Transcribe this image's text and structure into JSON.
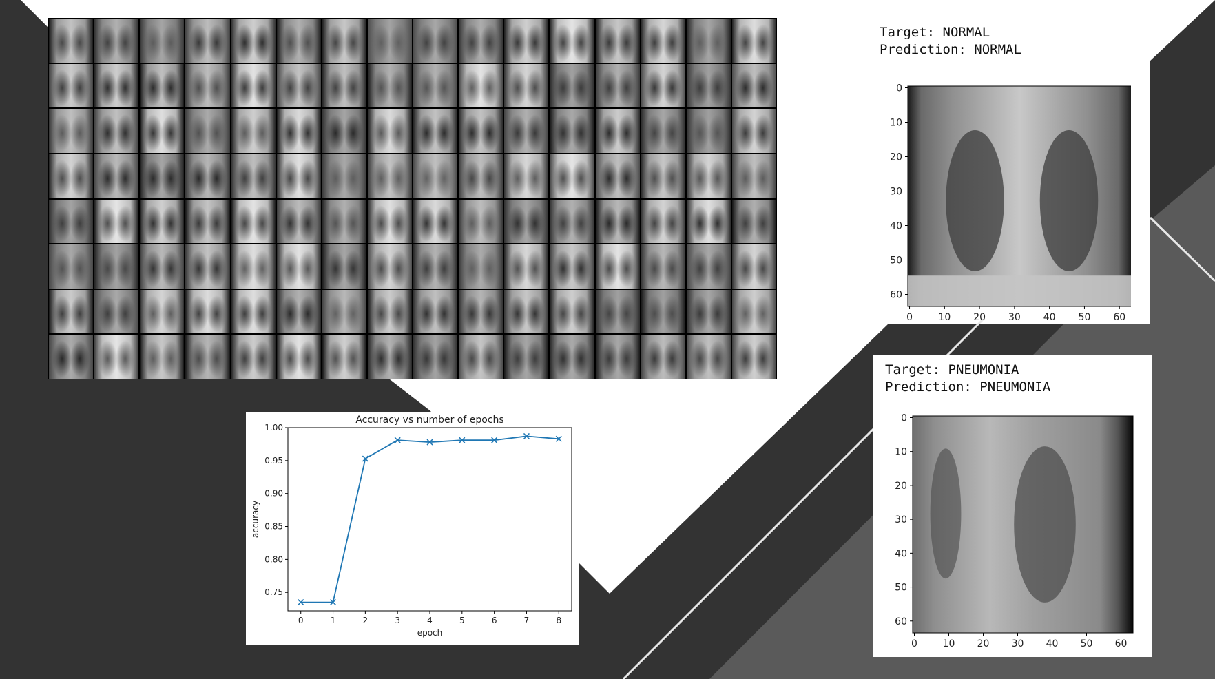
{
  "background": {
    "dark": "#333333",
    "mid": "#5a5a5a",
    "light": "#ffffff"
  },
  "mosaic": {
    "rows": 8,
    "cols": 16
  },
  "panels": {
    "normal": {
      "target_line": "Target: NORMAL",
      "prediction_line": "Prediction: NORMAL",
      "x_ticks": [
        "0",
        "10",
        "20",
        "30",
        "40",
        "50",
        "60"
      ],
      "y_ticks": [
        "0",
        "10",
        "20",
        "30",
        "40",
        "50",
        "60"
      ]
    },
    "pneumonia": {
      "target_line": "Target: PNEUMONIA",
      "prediction_line": "Prediction: PNEUMONIA",
      "x_ticks": [
        "0",
        "10",
        "20",
        "30",
        "40",
        "50",
        "60"
      ],
      "y_ticks": [
        "0",
        "10",
        "20",
        "30",
        "40",
        "50",
        "60"
      ]
    }
  },
  "chart_data": {
    "type": "line",
    "title": "Accuracy vs number of epochs",
    "xlabel": "epoch",
    "ylabel": "accuracy",
    "x": [
      0,
      1,
      2,
      3,
      4,
      5,
      6,
      7,
      8
    ],
    "series": [
      {
        "values": [
          0.735,
          0.735,
          0.953,
          0.981,
          0.978,
          0.981,
          0.981,
          0.987,
          0.983
        ],
        "color": "#1f77b4",
        "marker": "x"
      }
    ],
    "xlim": [
      -0.4,
      8.4
    ],
    "ylim": [
      0.722,
      1.0
    ],
    "x_ticks": [
      0,
      1,
      2,
      3,
      4,
      5,
      6,
      7,
      8
    ],
    "y_ticks": [
      0.75,
      0.8,
      0.85,
      0.9,
      0.95,
      1.0
    ],
    "y_tick_labels": [
      "0.75",
      "0.80",
      "0.85",
      "0.90",
      "0.95",
      "1.00"
    ],
    "grid": false
  }
}
